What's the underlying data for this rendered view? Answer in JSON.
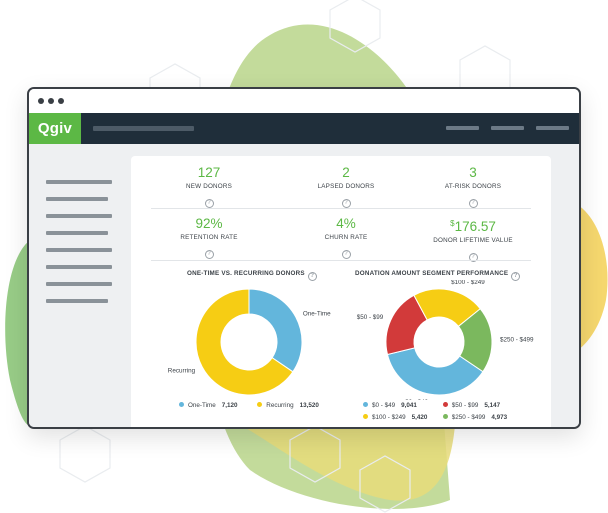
{
  "brand": {
    "logo_text": "Qgiv",
    "accent": "#5cb845",
    "navbar_color": "#1f2e3a"
  },
  "metrics": [
    {
      "value": "127",
      "label": "NEW DONORS"
    },
    {
      "value": "2",
      "label": "LAPSED DONORS"
    },
    {
      "value": "3",
      "label": "AT-RISK DONORS"
    },
    {
      "value": "92%",
      "label": "RETENTION RATE"
    },
    {
      "value": "4%",
      "label": "CHURN RATE"
    },
    {
      "value_prefix": "$",
      "value": "176.57",
      "label": "DONOR LIFETIME VALUE"
    }
  ],
  "help_glyph": "?",
  "chart_data": [
    {
      "type": "pie",
      "title": "ONE-TIME VS. RECURRING DONORS",
      "categories": [
        "One-Time",
        "Recurring"
      ],
      "values": [
        7120,
        13520
      ],
      "value_labels": [
        "7,120",
        "13,520"
      ],
      "colors": [
        "#63b6dc",
        "#f6cd14"
      ],
      "donut": true
    },
    {
      "type": "pie",
      "title": "DONATION AMOUNT SEGMENT PERFORMANCE",
      "categories": [
        "$0 - $49",
        "$50 - $99",
        "$100 - $249",
        "$250 - $499"
      ],
      "values": [
        9041,
        5147,
        5420,
        4973
      ],
      "value_labels": [
        "9,041",
        "5,147",
        "5,420",
        "4,973"
      ],
      "colors": [
        "#63b6dc",
        "#d23a3a",
        "#f6cd14",
        "#7bb85e"
      ],
      "donut": true
    }
  ]
}
